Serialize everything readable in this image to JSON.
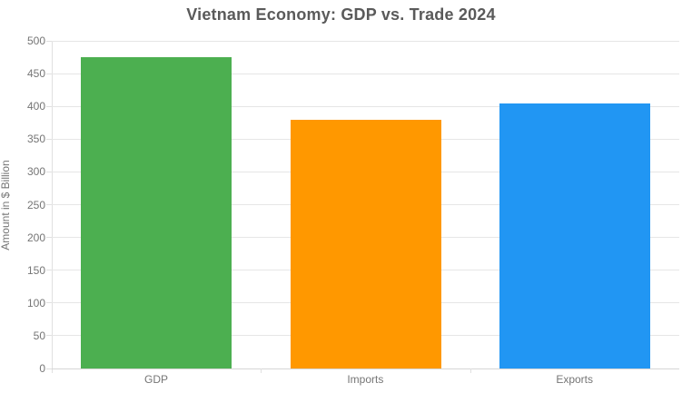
{
  "title": "Vietnam Economy: GDP vs. Trade 2024",
  "chart_data": {
    "type": "bar",
    "title": "Vietnam Economy: GDP vs. Trade 2024",
    "categories": [
      "GDP",
      "Imports",
      "Exports"
    ],
    "values": [
      475,
      380,
      405
    ],
    "bar_colors": [
      "#4caf50",
      "#ff9800",
      "#2196f3"
    ],
    "xlabel": "",
    "ylabel": "Amount in $ Billion",
    "ylim": [
      0,
      500
    ],
    "ytick_step": 50,
    "ytick_labels": [
      "0",
      "50",
      "100",
      "150",
      "200",
      "250",
      "300",
      "350",
      "400",
      "450",
      "500"
    ],
    "grid": true,
    "legend": "none",
    "colors": {
      "title_text": "#5a5a5a",
      "axis_text": "#757575",
      "gridline": "#e6e6e6",
      "axis_line": "#e0e0e0",
      "background": "#ffffff"
    }
  }
}
